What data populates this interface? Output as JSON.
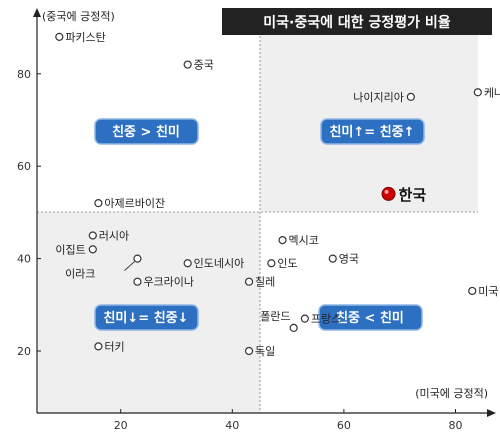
{
  "chart_data": {
    "type": "scatter",
    "title": "미국·중국에 대한 긍정평가 비율",
    "xlabel": "(미국에 긍정적)",
    "ylabel": "(중국에 긍정적)",
    "xlim": [
      5,
      85
    ],
    "ylim": [
      10,
      95
    ],
    "xticks": [
      "20",
      "40",
      "60",
      "80"
    ],
    "yticks": [
      "20",
      "40",
      "60",
      "80"
    ],
    "divider": {
      "x": 50,
      "y": 50
    },
    "quadrant_labels": {
      "top_left": "친중 > 친미",
      "top_right": "친미↑= 친중↑",
      "bottom_left": "친미↓= 친중↓",
      "bottom_right": "친중 < 친미"
    },
    "highlight_color": "#cc0000",
    "points": [
      {
        "label": "파키스탄",
        "x": 9,
        "y": 88
      },
      {
        "label": "중국",
        "x": 32,
        "y": 82
      },
      {
        "label": "나이지리아",
        "x": 72,
        "y": 75
      },
      {
        "label": "케냐",
        "x": 84,
        "y": 76
      },
      {
        "label": "아제르바이잔",
        "x": 16,
        "y": 52
      },
      {
        "label": "한국",
        "x": 68,
        "y": 54,
        "highlight": true
      },
      {
        "label": "이집트",
        "x": 15,
        "y": 42
      },
      {
        "label": "러시아",
        "x": 15,
        "y": 45
      },
      {
        "label": "이라크",
        "x": 23,
        "y": 40
      },
      {
        "label": "우크라이나",
        "x": 23,
        "y": 35
      },
      {
        "label": "인도네시아",
        "x": 32,
        "y": 39
      },
      {
        "label": "인도",
        "x": 47,
        "y": 39
      },
      {
        "label": "칠레",
        "x": 43,
        "y": 35
      },
      {
        "label": "멕시코",
        "x": 49,
        "y": 44
      },
      {
        "label": "영국",
        "x": 58,
        "y": 40
      },
      {
        "label": "미국",
        "x": 83,
        "y": 33
      },
      {
        "label": "폴란드",
        "x": 51,
        "y": 25
      },
      {
        "label": "프랑스",
        "x": 53,
        "y": 27
      },
      {
        "label": "터키",
        "x": 16,
        "y": 21
      },
      {
        "label": "독일",
        "x": 43,
        "y": 20
      }
    ]
  }
}
